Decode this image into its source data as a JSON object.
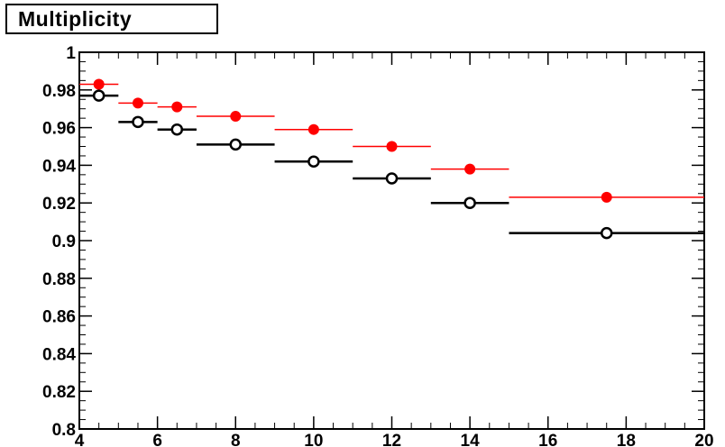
{
  "chart_data": {
    "type": "scatter",
    "title": "Multiplicity",
    "xlim": [
      4,
      20
    ],
    "ylim": [
      0.8,
      1.0
    ],
    "x_ticks": [
      4,
      6,
      8,
      10,
      12,
      14,
      16,
      18,
      20
    ],
    "y_ticks": [
      0.8,
      0.82,
      0.84,
      0.86,
      0.88,
      0.9,
      0.92,
      0.94,
      0.96,
      0.98,
      1
    ],
    "grid": false,
    "series": [
      {
        "marker": "filled-circle",
        "color": "#ff0000",
        "points": [
          {
            "x": 4.5,
            "xlo": 4.0,
            "xhi": 5.0,
            "y": 0.983
          },
          {
            "x": 5.5,
            "xlo": 5.0,
            "xhi": 6.0,
            "y": 0.973
          },
          {
            "x": 6.5,
            "xlo": 6.0,
            "xhi": 7.0,
            "y": 0.971
          },
          {
            "x": 8.0,
            "xlo": 7.0,
            "xhi": 9.0,
            "y": 0.966
          },
          {
            "x": 10.0,
            "xlo": 9.0,
            "xhi": 11.0,
            "y": 0.959
          },
          {
            "x": 12.0,
            "xlo": 11.0,
            "xhi": 13.0,
            "y": 0.95
          },
          {
            "x": 14.0,
            "xlo": 13.0,
            "xhi": 15.0,
            "y": 0.938
          },
          {
            "x": 17.5,
            "xlo": 15.0,
            "xhi": 20.0,
            "y": 0.923
          }
        ]
      },
      {
        "marker": "open-circle",
        "color": "#000000",
        "points": [
          {
            "x": 4.5,
            "xlo": 4.0,
            "xhi": 5.0,
            "y": 0.977
          },
          {
            "x": 5.5,
            "xlo": 5.0,
            "xhi": 6.0,
            "y": 0.963
          },
          {
            "x": 6.5,
            "xlo": 6.0,
            "xhi": 7.0,
            "y": 0.959
          },
          {
            "x": 8.0,
            "xlo": 7.0,
            "xhi": 9.0,
            "y": 0.951
          },
          {
            "x": 10.0,
            "xlo": 9.0,
            "xhi": 11.0,
            "y": 0.942
          },
          {
            "x": 12.0,
            "xlo": 11.0,
            "xhi": 13.0,
            "y": 0.933
          },
          {
            "x": 14.0,
            "xlo": 13.0,
            "xhi": 15.0,
            "y": 0.92
          },
          {
            "x": 17.5,
            "xlo": 15.0,
            "xhi": 20.0,
            "y": 0.904
          }
        ]
      }
    ]
  }
}
